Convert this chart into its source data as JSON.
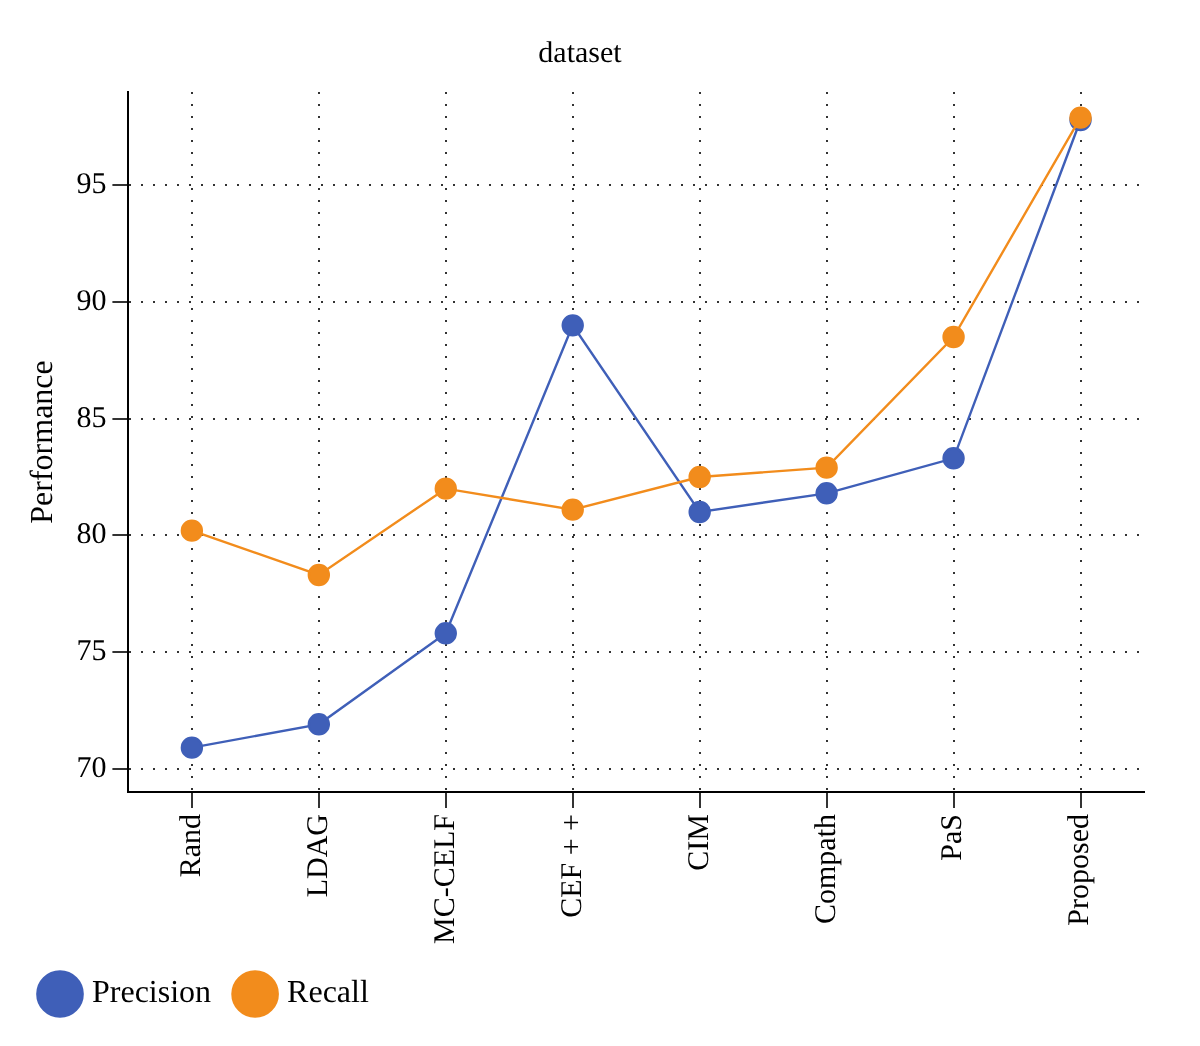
{
  "chart_data": {
    "type": "line",
    "title": "dataset",
    "ylabel": "Performance",
    "categories": [
      "Rand",
      "LDAG",
      "MC-CELF",
      "CEF + +",
      "CIM",
      "Compath",
      "PaS",
      "Proposed"
    ],
    "series": [
      {
        "name": "Precision",
        "color": "#3f5fb8",
        "values": [
          70.9,
          71.9,
          75.8,
          89.0,
          81.0,
          81.8,
          83.3,
          97.8
        ]
      },
      {
        "name": "Recall",
        "color": "#f28c1c",
        "values": [
          80.2,
          78.3,
          82.0,
          81.1,
          82.5,
          82.9,
          88.5,
          97.9
        ]
      }
    ],
    "ylim": [
      69,
      99
    ],
    "yticks": [
      70,
      75,
      80,
      85,
      90,
      95
    ],
    "grid": true,
    "legend": "bottom left",
    "marker": "circle",
    "line_style": "solid"
  }
}
